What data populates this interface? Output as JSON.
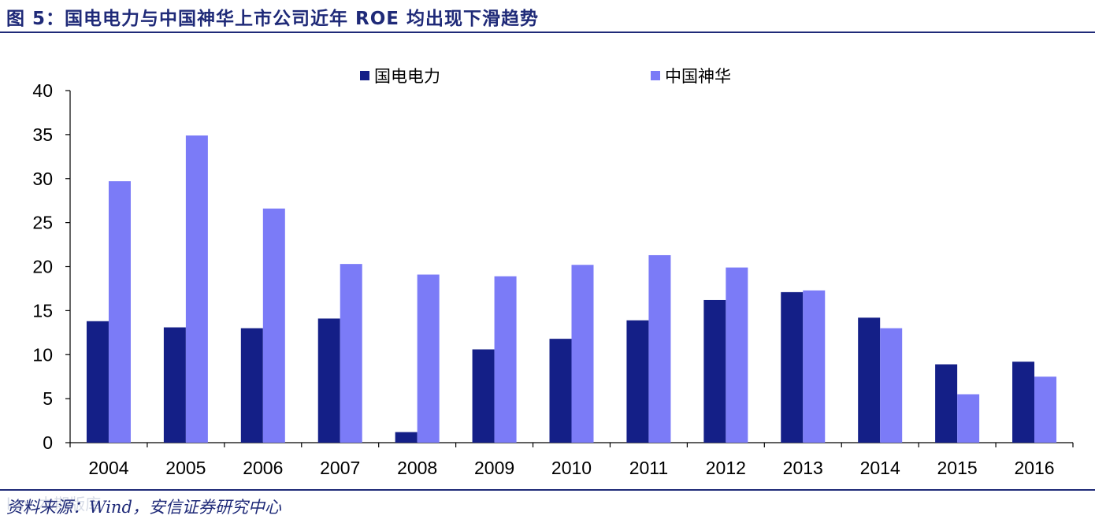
{
  "header": {
    "title": "图 5：国电电力与中国神华上市公司近年 ROE 均出现下滑趋势"
  },
  "source": "资料来源：Wind，安信证券研究中心",
  "watermark": "ksy 本期版库",
  "colors": {
    "series_1": "#141f87",
    "series_2": "#7b7bf7",
    "rule": "#1f2a78"
  },
  "chart_data": {
    "type": "bar",
    "categories": [
      "2004",
      "2005",
      "2006",
      "2007",
      "2008",
      "2009",
      "2010",
      "2011",
      "2012",
      "2013",
      "2014",
      "2015",
      "2016"
    ],
    "series": [
      {
        "name": "国电电力",
        "values": [
          13.8,
          13.1,
          13.0,
          14.1,
          1.2,
          10.6,
          11.8,
          13.9,
          16.2,
          17.1,
          14.2,
          8.9,
          9.2
        ]
      },
      {
        "name": "中国神华",
        "values": [
          29.7,
          34.9,
          26.6,
          20.3,
          19.1,
          18.9,
          20.2,
          21.3,
          19.9,
          17.3,
          13.0,
          5.5,
          7.5
        ]
      }
    ],
    "title": "",
    "xlabel": "",
    "ylabel": "",
    "ylim": [
      0,
      40
    ],
    "yticks": [
      "0",
      "5",
      "10",
      "15",
      "20",
      "25",
      "30",
      "35",
      "40"
    ],
    "legend_position": "top",
    "grid": false
  }
}
